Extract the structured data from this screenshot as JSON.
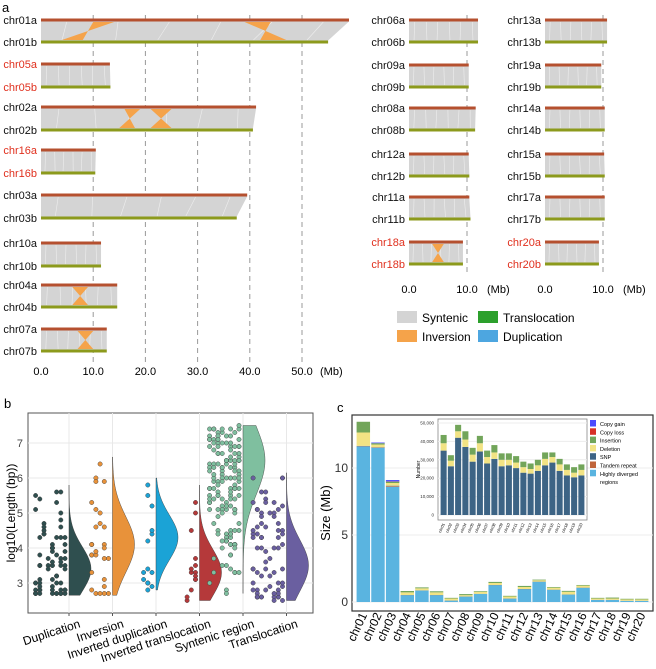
{
  "panel_labels": {
    "a": "a",
    "b": "b",
    "c": "c"
  },
  "colors": {
    "top_bar": "#b5502f",
    "bottom_bar": "#8c9a1c",
    "syntenic": "#d4d4d4",
    "inversion": "#f5a34a",
    "translocation": "#2ca02c",
    "duplication": "#4da6e0",
    "red_label": "#e0301e"
  },
  "panel_a": {
    "left": {
      "ticks": [
        "0.0",
        "10.0",
        "20.0",
        "30.0",
        "40.0",
        "50.0"
      ],
      "unit": "(Mb)",
      "tick_values": [
        0,
        10,
        20,
        30,
        40,
        50
      ],
      "pairs": [
        {
          "a": "chr01a",
          "b": "chr01b",
          "la": 59,
          "lb": 55,
          "red": false,
          "inv": [
            [
              10,
              14,
              4,
              8
            ],
            [
              39,
              44,
              42,
              47
            ]
          ]
        },
        {
          "a": "chr05a",
          "b": "chr05b",
          "la": 13.2,
          "lb": 13.3,
          "red": true,
          "inv": []
        },
        {
          "a": "chr02a",
          "b": "chr02b",
          "la": 41.2,
          "lb": 40.6,
          "red": false,
          "inv": [
            [
              16,
              19,
              15,
              18
            ],
            [
              21,
              25,
              21,
              25
            ]
          ]
        },
        {
          "a": "chr16a",
          "b": "chr16b",
          "la": 10.5,
          "lb": 10.4,
          "red": true,
          "inv": []
        },
        {
          "a": "chr03a",
          "b": "chr03b",
          "la": 39.5,
          "lb": 37.5,
          "red": false,
          "inv": []
        },
        {
          "a": "chr10a",
          "b": "chr10b",
          "la": 11.5,
          "lb": 11.5,
          "red": false,
          "inv": []
        },
        {
          "a": "chr04a",
          "b": "chr04b",
          "la": 14.6,
          "lb": 14.6,
          "red": false,
          "inv": [
            [
              6,
              9,
              6,
              9
            ]
          ]
        },
        {
          "a": "chr07a",
          "b": "chr07b",
          "la": 12.6,
          "lb": 12.6,
          "red": false,
          "inv": [
            [
              7,
              10,
              7,
              10
            ]
          ]
        }
      ]
    },
    "right1": {
      "ticks": [
        "0.0",
        "10.0"
      ],
      "unit": "(Mb)",
      "pairs": [
        {
          "a": "chr06a",
          "b": "chr06b",
          "la": 11.9,
          "lb": 11.9,
          "red": false,
          "inv": []
        },
        {
          "a": "chr09a",
          "b": "chr09b",
          "la": 10.3,
          "lb": 10.3,
          "red": false,
          "inv": []
        },
        {
          "a": "chr08a",
          "b": "chr08b",
          "la": 11.5,
          "lb": 11.4,
          "red": false,
          "inv": []
        },
        {
          "a": "chr12a",
          "b": "chr12b",
          "la": 10.3,
          "lb": 10.4,
          "red": false,
          "inv": []
        },
        {
          "a": "chr11a",
          "b": "chr11b",
          "la": 10.4,
          "lb": 10.6,
          "red": false,
          "inv": []
        },
        {
          "a": "chr18a",
          "b": "chr18b",
          "la": 9.3,
          "lb": 9.3,
          "red": true,
          "inv": [
            [
              4,
              6,
              4,
              6
            ]
          ]
        }
      ]
    },
    "right2": {
      "ticks": [
        "0.0",
        "10.0"
      ],
      "unit": "(Mb)",
      "pairs": [
        {
          "a": "chr13a",
          "b": "chr13b",
          "la": 10.7,
          "lb": 10.7,
          "red": false,
          "inv": []
        },
        {
          "a": "chr19a",
          "b": "chr19b",
          "la": 9.7,
          "lb": 9.7,
          "red": false,
          "inv": []
        },
        {
          "a": "chr14a",
          "b": "chr14b",
          "la": 10.3,
          "lb": 10.3,
          "red": false,
          "inv": []
        },
        {
          "a": "chr15a",
          "b": "chr15b",
          "la": 10.2,
          "lb": 10.3,
          "red": false,
          "inv": []
        },
        {
          "a": "chr17a",
          "b": "chr17b",
          "la": 10.3,
          "lb": 10.3,
          "red": false,
          "inv": []
        },
        {
          "a": "chr20a",
          "b": "chr20b",
          "la": 9.3,
          "lb": 9.3,
          "red": true,
          "inv": []
        }
      ]
    },
    "legend": [
      {
        "label": "Syntenic",
        "color": "#d4d4d4"
      },
      {
        "label": "Translocation",
        "color": "#2ca02c"
      },
      {
        "label": "Inversion",
        "color": "#f5a34a"
      },
      {
        "label": "Duplication",
        "color": "#4da6e0"
      }
    ]
  },
  "chart_data": [
    {
      "type": "violin",
      "ylabel": "log10(Length (bp))",
      "yticks": [
        3,
        4,
        5,
        6,
        7
      ],
      "ylim": [
        2.3,
        7.6
      ],
      "groups": [
        {
          "name": "Duplication",
          "color": "#2f4f4f",
          "min": 2.65,
          "max": 5.8,
          "mode": 3.4,
          "n": 70
        },
        {
          "name": "Inversion",
          "color": "#e8923a",
          "min": 2.65,
          "max": 6.6,
          "mode": 4.1,
          "n": 28
        },
        {
          "name": "Inverted duplication",
          "color": "#1ba3d6",
          "min": 2.8,
          "max": 6.0,
          "mode": 4.3,
          "n": 14
        },
        {
          "name": "Inverted translocation",
          "color": "#b5393a",
          "min": 2.5,
          "max": 5.8,
          "mode": 3.3,
          "n": 14
        },
        {
          "name": "Syntenic region",
          "color": "#7fbf9f",
          "min": 2.7,
          "max": 7.5,
          "mode": 6.5,
          "n": 150
        },
        {
          "name": "Translocation",
          "color": "#6a5fa0",
          "min": 2.5,
          "max": 6.15,
          "mode": 3.5,
          "n": 70
        }
      ]
    },
    {
      "type": "bar",
      "stacked": true,
      "ylabel": "Size (Mb)",
      "yticks": [
        0,
        5,
        10
      ],
      "ylim": [
        0,
        14
      ],
      "categories": [
        "chr01",
        "chr02",
        "chr03",
        "chr04",
        "chr05",
        "chr06",
        "chr07",
        "chr08",
        "chr09",
        "chr10",
        "chr11",
        "chr12",
        "chr13",
        "chr14",
        "chr15",
        "chr16",
        "chr17",
        "chr18",
        "chr19",
        "chr20"
      ],
      "series": [
        {
          "name": "Highly diverged regions",
          "color": "#5ab4e0",
          "values": [
            11.6,
            11.5,
            8.6,
            0.5,
            0.85,
            0.5,
            0.1,
            0.4,
            0.6,
            1.25,
            0.25,
            0.95,
            1.5,
            0.9,
            0.55,
            1.05,
            0.15,
            0.15,
            0.08,
            0.08
          ]
        },
        {
          "name": "Tandem repeat",
          "color": "#c0643a",
          "values": [
            0.02,
            0.02,
            0.05,
            0,
            0,
            0,
            0,
            0,
            0,
            0,
            0,
            0,
            0,
            0,
            0,
            0,
            0,
            0,
            0,
            0
          ]
        },
        {
          "name": "SNP",
          "color": "#3d6485",
          "values": [
            0.03,
            0.03,
            0.03,
            0.02,
            0.02,
            0.02,
            0.01,
            0.01,
            0.01,
            0.02,
            0.01,
            0.02,
            0.02,
            0.02,
            0.01,
            0.02,
            0.01,
            0.01,
            0.01,
            0.01
          ]
        },
        {
          "name": "Deletion",
          "color": "#f2e384",
          "values": [
            1.0,
            0.2,
            0.2,
            0.2,
            0.15,
            0.2,
            0.15,
            0.1,
            0.15,
            0.15,
            0.15,
            0.15,
            0.1,
            0.15,
            0.2,
            0.15,
            0.1,
            0.1,
            0.1,
            0.1
          ]
        },
        {
          "name": "Insertion",
          "color": "#72a55a",
          "values": [
            0.8,
            0.1,
            0.1,
            0.1,
            0.07,
            0.08,
            0.05,
            0.08,
            0.05,
            0.08,
            0.05,
            0.08,
            0.05,
            0.05,
            0.07,
            0.05,
            0.05,
            0.07,
            0.05,
            0.05
          ]
        },
        {
          "name": "Copy loss",
          "color": "#d73027",
          "values": [
            0,
            0,
            0.02,
            0,
            0,
            0,
            0,
            0,
            0,
            0,
            0,
            0,
            0,
            0,
            0,
            0,
            0,
            0,
            0,
            0
          ]
        },
        {
          "name": "Copy gain",
          "color": "#4a4aff",
          "values": [
            0,
            0.05,
            0.1,
            0,
            0,
            0,
            0,
            0,
            0,
            0,
            0,
            0,
            0,
            0,
            0,
            0,
            0,
            0,
            0,
            0
          ]
        }
      ]
    },
    {
      "type": "bar",
      "stacked": true,
      "inset": true,
      "ylabel": "Number",
      "yticks": [
        0,
        10000,
        20000,
        30000,
        40000,
        50000
      ],
      "ytick_labels": [
        "0",
        "10,000",
        "20,000",
        "30,000",
        "40,000",
        "50,000"
      ],
      "ylim": [
        0,
        52000
      ],
      "categories": [
        "chr01",
        "chr02",
        "chr03",
        "chr04",
        "chr05",
        "chr06",
        "chr07",
        "chr08",
        "chr09",
        "chr10",
        "chr11",
        "chr12",
        "chr13",
        "chr14",
        "chr15",
        "chr16",
        "chr17",
        "chr18",
        "chr19",
        "chr20"
      ],
      "series": [
        {
          "name": "SNP",
          "color": "#3d6485",
          "values": [
            35000,
            26500,
            42000,
            37000,
            29000,
            34500,
            28000,
            30500,
            26500,
            27000,
            25500,
            23000,
            22500,
            24000,
            27000,
            28500,
            24000,
            21500,
            20500,
            21500
          ]
        },
        {
          "name": "Deletion",
          "color": "#f2e384",
          "values": [
            4000,
            3000,
            3500,
            4000,
            3800,
            4500,
            3500,
            3500,
            3500,
            3000,
            3000,
            3000,
            2500,
            3000,
            3500,
            3000,
            3500,
            3000,
            2500,
            3000
          ]
        },
        {
          "name": "Insertion",
          "color": "#72a55a",
          "values": [
            4500,
            3000,
            3500,
            4500,
            3700,
            4000,
            3500,
            4000,
            3500,
            3500,
            3500,
            3000,
            3000,
            3000,
            3500,
            2500,
            3000,
            3000,
            3000,
            3000
          ]
        }
      ],
      "legend": [
        {
          "label": "Copy gain",
          "color": "#4a4aff"
        },
        {
          "label": "Copy loss",
          "color": "#d73027"
        },
        {
          "label": "Insertion",
          "color": "#72a55a"
        },
        {
          "label": "Deletion",
          "color": "#f2e384"
        },
        {
          "label": "SNP",
          "color": "#3d6485"
        },
        {
          "label": "Tandem repeat",
          "color": "#c0643a"
        },
        {
          "label": "Highly diverged",
          "color": "#5ab4e0"
        },
        {
          "label": "regions",
          "color": ""
        }
      ]
    }
  ]
}
